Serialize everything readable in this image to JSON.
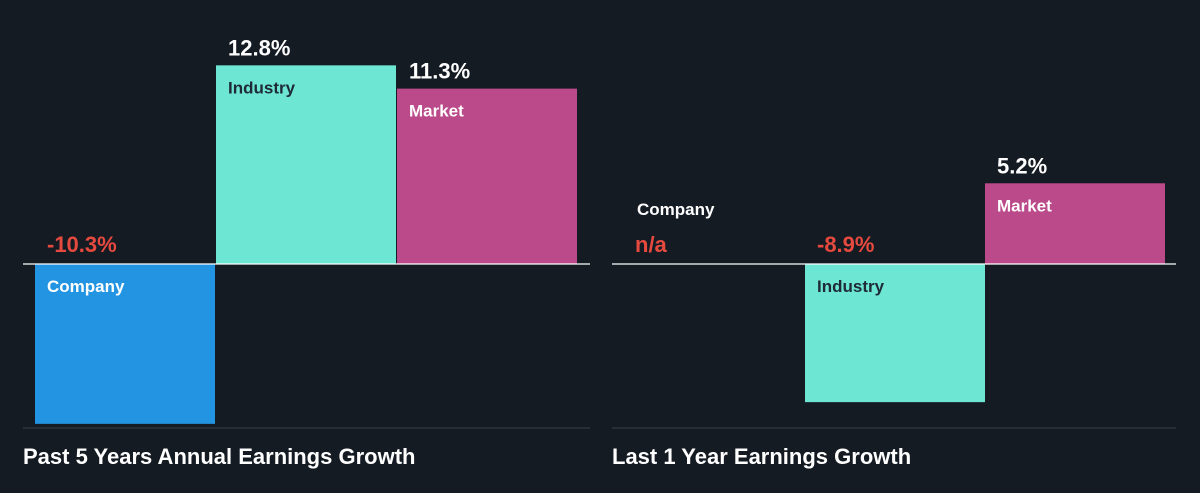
{
  "colors": {
    "background": "#151b23",
    "company": "#2394e2",
    "industry": "#6de6d4",
    "market": "#bb4a8a",
    "negative_label": "#e64a3f",
    "positive_label": "#ffffff",
    "baseline": "#ffffff",
    "divider": "#3a414b"
  },
  "chart_data": [
    {
      "type": "bar",
      "title": "Past 5 Years Annual Earnings Growth",
      "categories": [
        "Company",
        "Industry",
        "Market"
      ],
      "values": [
        -10.3,
        12.8,
        11.3
      ],
      "value_labels": [
        "-10.3%",
        "12.8%",
        "11.3%"
      ],
      "unit": "%",
      "ylim": [
        -12.0,
        14.6
      ],
      "grid": false,
      "legend": "none"
    },
    {
      "type": "bar",
      "title": "Last 1 Year Earnings Growth",
      "categories": [
        "Company",
        "Industry",
        "Market"
      ],
      "values": [
        null,
        -8.9,
        5.2
      ],
      "value_labels": [
        "n/a",
        "-8.9%",
        "5.2%"
      ],
      "unit": "%",
      "ylim": [
        -12.0,
        14.6
      ],
      "grid": false,
      "legend": "none"
    }
  ]
}
